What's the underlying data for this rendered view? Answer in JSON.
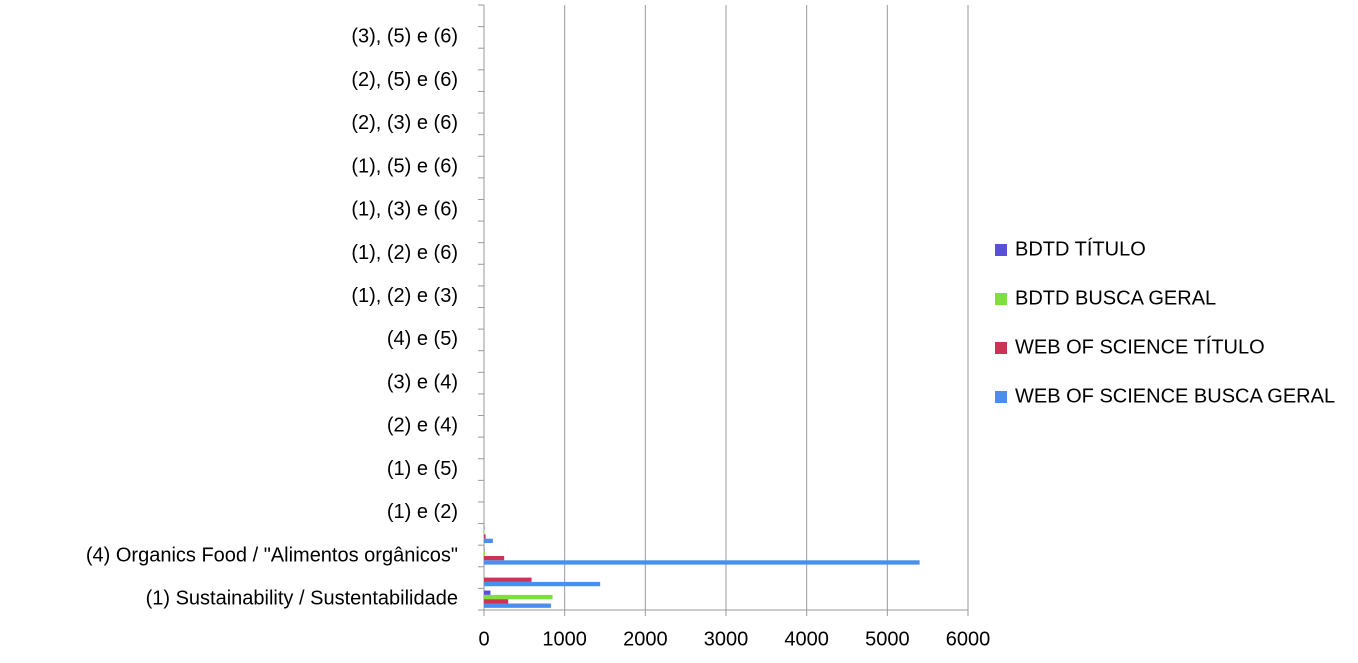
{
  "chart_data": {
    "type": "bar",
    "orientation": "horizontal",
    "categories": [
      "(1) Sustainability / Sustentabilidade",
      null,
      "(4) Organics Food / \"Alimentos orgânicos\"",
      null,
      "(1) e (2)",
      null,
      "(1) e (5)",
      null,
      "(2) e (4)",
      null,
      "(3) e (4)",
      null,
      "(4) e (5)",
      null,
      "(1), (2) e (3)",
      null,
      "(1), (2) e (6)",
      null,
      "(1), (3) e (6)",
      null,
      "(1), (5) e (6)",
      null,
      "(2), (3) e (6)",
      null,
      "(2), (5) e (6)",
      null,
      "(3), (5) e (6)",
      null
    ],
    "series": [
      {
        "name": "BDTD TÍTULO",
        "color": "#5a4fd8",
        "values": [
          80,
          0,
          5,
          5,
          0,
          0,
          0,
          0,
          0,
          0,
          0,
          0,
          0,
          0,
          0,
          0,
          0,
          0,
          0,
          0,
          0,
          0,
          0,
          0,
          0,
          0,
          0,
          0
        ]
      },
      {
        "name": "BDTD BUSCA GERAL",
        "color": "#7ee03c",
        "values": [
          850,
          0,
          10,
          5,
          0,
          0,
          0,
          0,
          0,
          0,
          0,
          0,
          0,
          0,
          0,
          0,
          0,
          0,
          0,
          0,
          0,
          0,
          0,
          0,
          0,
          0,
          0,
          0
        ]
      },
      {
        "name": "WEB OF SCIENCE TÍTULO",
        "color": "#cc3355",
        "values": [
          300,
          590,
          250,
          20,
          0,
          0,
          0,
          0,
          0,
          0,
          0,
          0,
          0,
          0,
          0,
          0,
          0,
          0,
          0,
          0,
          0,
          0,
          0,
          0,
          0,
          0,
          0,
          0
        ]
      },
      {
        "name": "WEB OF SCIENCE BUSCA GERAL",
        "color": "#4a8ef0",
        "values": [
          830,
          1440,
          5400,
          110,
          0,
          0,
          0,
          0,
          0,
          0,
          0,
          0,
          0,
          0,
          0,
          0,
          0,
          0,
          0,
          0,
          0,
          0,
          0,
          0,
          0,
          0,
          0,
          0
        ]
      }
    ],
    "xlim": [
      0,
      6000
    ],
    "xticks": [
      0,
      1000,
      2000,
      3000,
      4000,
      5000,
      6000
    ],
    "grid": true,
    "legend": "right"
  }
}
